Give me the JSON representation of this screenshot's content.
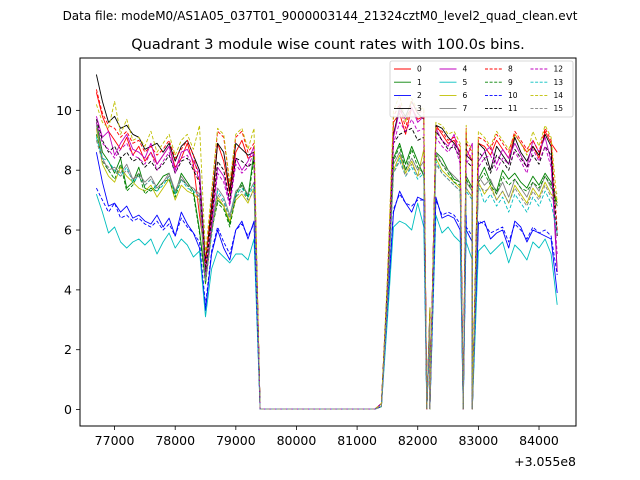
{
  "chart_data": {
    "type": "line",
    "suptitle": "Data file: modeM0/AS1A05_037T01_9000003144_21324cztM0_level2_quad_clean.evt",
    "title": "Quadrant 3 module wise count rates with 100.0s bins.",
    "xlabel": "",
    "ylabel": "",
    "x_offset_label": "+3.055e8",
    "xlim": [
      76430,
      84610
    ],
    "ylim": [
      -0.55,
      11.75
    ],
    "xticks": [
      77000,
      78000,
      79000,
      80000,
      81000,
      82000,
      83000,
      84000
    ],
    "xtick_labels": [
      "77000",
      "78000",
      "79000",
      "80000",
      "81000",
      "82000",
      "83000",
      "84000"
    ],
    "yticks": [
      0,
      2,
      4,
      6,
      8,
      10
    ],
    "ytick_labels": [
      "0",
      "2",
      "4",
      "6",
      "8",
      "10"
    ],
    "legend_position": "top-right",
    "legend_columns": 4,
    "segments": [
      {
        "start": 76700,
        "count": 27
      },
      {
        "start": 81400,
        "count": 8
      },
      {
        "start": 82200,
        "count": 7
      },
      {
        "start": 82800,
        "count": 16
      }
    ],
    "gaps": [
      {
        "from": 79400,
        "to": 81300
      }
    ],
    "series": [
      {
        "name": "0",
        "color": "#ff0000",
        "dash": "solid",
        "values": [
          10.6,
          9.8,
          9.3,
          9.0,
          8.7,
          9.1,
          8.5,
          8.8,
          8.3,
          8.6,
          8.2,
          8.5,
          8.8,
          8.1,
          8.4,
          8.9,
          8.2,
          6.5,
          5.0,
          6.5,
          8.9,
          8.3,
          7.2,
          8.6,
          9.0,
          8.4,
          8.5,
          0.2,
          4.1,
          9.6,
          9.9,
          9.2,
          10.1,
          9.7,
          9.8,
          3.2,
          9.5,
          9.2,
          8.9,
          9.0,
          8.6,
          9.3,
          8.7,
          8.3,
          8.9,
          8.8,
          8.5,
          9.0,
          8.7,
          8.4,
          9.2,
          8.9,
          8.6,
          8.8,
          8.4,
          9.3,
          8.9,
          8.6
        ]
      },
      {
        "name": "1",
        "color": "#008000",
        "dash": "solid",
        "values": [
          9.6,
          8.6,
          8.3,
          7.9,
          8.4,
          7.4,
          7.6,
          8.1,
          7.4,
          7.3,
          7.5,
          7.8,
          7.9,
          7.2,
          7.9,
          7.6,
          7.3,
          6.0,
          4.3,
          6.1,
          7.0,
          6.8,
          6.2,
          7.2,
          7.6,
          7.1,
          8.6,
          0.1,
          3.9,
          8.4,
          8.9,
          8.2,
          8.8,
          8.3,
          7.8,
          2.9,
          8.6,
          8.4,
          8.0,
          7.7,
          7.6,
          7.9,
          7.8,
          7.4,
          7.7,
          8.1,
          7.6,
          7.3,
          8.0,
          7.7,
          7.9,
          7.6,
          7.4,
          7.8,
          7.5,
          7.9,
          7.6,
          6.9
        ]
      },
      {
        "name": "2",
        "color": "#0000ff",
        "dash": "solid",
        "values": [
          8.6,
          7.6,
          6.8,
          6.9,
          6.6,
          6.8,
          6.4,
          6.5,
          6.3,
          6.2,
          6.5,
          6.1,
          6.4,
          5.8,
          6.6,
          6.2,
          5.9,
          5.4,
          3.3,
          5.2,
          6.0,
          5.4,
          5.0,
          6.0,
          6.3,
          5.7,
          6.3,
          0.1,
          3.3,
          6.6,
          7.3,
          6.9,
          6.6,
          7.1,
          7.0,
          2.8,
          7.1,
          6.4,
          6.5,
          6.4,
          6.0,
          6.4,
          6.0,
          5.6,
          6.2,
          6.3,
          5.7,
          5.9,
          6.0,
          5.4,
          6.3,
          6.1,
          5.6,
          6.0,
          5.9,
          5.8,
          5.7,
          3.9
        ]
      },
      {
        "name": "3",
        "color": "#000000",
        "dash": "solid",
        "values": [
          11.2,
          10.3,
          9.6,
          9.8,
          9.4,
          9.5,
          9.2,
          9.1,
          8.7,
          8.8,
          8.9,
          8.6,
          8.9,
          8.3,
          8.8,
          9.0,
          8.5,
          8.0,
          4.9,
          6.8,
          8.9,
          8.6,
          7.3,
          8.9,
          8.7,
          8.5,
          8.6,
          0.2,
          4.2,
          9.2,
          10.1,
          9.8,
          10.3,
          9.9,
          9.7,
          3.4,
          9.5,
          9.4,
          9.1,
          8.9,
          8.6,
          9.2,
          8.5,
          8.3,
          8.9,
          8.7,
          8.0,
          8.8,
          8.5,
          8.2,
          9.1,
          8.6,
          8.3,
          8.8,
          8.5,
          9.2,
          8.8,
          4.6
        ]
      },
      {
        "name": "4",
        "color": "#bf00bf",
        "dash": "solid",
        "values": [
          9.8,
          9.1,
          9.3,
          8.5,
          8.9,
          9.2,
          8.7,
          8.6,
          8.4,
          8.9,
          8.2,
          8.5,
          8.8,
          8.0,
          8.6,
          8.7,
          8.3,
          7.9,
          4.5,
          6.2,
          8.1,
          7.8,
          6.9,
          8.4,
          8.0,
          8.3,
          8.8,
          0.2,
          3.9,
          9.1,
          10.0,
          9.7,
          10.1,
          9.6,
          9.8,
          3.1,
          9.4,
          9.0,
          8.8,
          9.2,
          8.4,
          8.6,
          8.4,
          8.9,
          8.3,
          8.6,
          8.8,
          8.2,
          8.7,
          8.4,
          8.9,
          8.5,
          8.1,
          9.0,
          8.6,
          9.1,
          8.3,
          4.6
        ]
      },
      {
        "name": "5",
        "color": "#00bfbf",
        "dash": "solid",
        "values": [
          7.2,
          6.6,
          5.9,
          6.1,
          5.6,
          5.4,
          5.6,
          5.7,
          5.5,
          5.7,
          5.2,
          5.6,
          5.9,
          5.4,
          5.7,
          5.5,
          5.1,
          5.3,
          3.1,
          4.7,
          5.3,
          5.1,
          4.9,
          5.2,
          5.2,
          5.0,
          5.7,
          0.1,
          3.0,
          6.1,
          6.3,
          6.2,
          6.0,
          6.9,
          6.1,
          2.6,
          6.5,
          5.9,
          6.1,
          5.8,
          5.6,
          6.1,
          5.6,
          5.0,
          5.3,
          5.5,
          5.2,
          5.4,
          5.6,
          4.9,
          5.5,
          5.3,
          5.0,
          5.6,
          5.4,
          5.7,
          5.2,
          3.5
        ]
      },
      {
        "name": "6",
        "color": "#bfbf00",
        "dash": "solid",
        "values": [
          9.4,
          8.2,
          7.8,
          7.6,
          8.1,
          7.8,
          7.6,
          7.4,
          7.3,
          7.5,
          7.1,
          7.4,
          7.7,
          7.0,
          7.5,
          7.3,
          7.2,
          7.0,
          4.2,
          5.9,
          7.1,
          6.8,
          6.3,
          7.0,
          7.2,
          6.9,
          7.4,
          0.1,
          3.6,
          8.0,
          8.5,
          7.9,
          8.3,
          7.8,
          8.7,
          3.0,
          8.4,
          8.0,
          7.8,
          7.6,
          7.4,
          7.7,
          7.4,
          7.1,
          7.6,
          7.2,
          7.5,
          7.0,
          7.3,
          6.9,
          7.5,
          7.2,
          6.9,
          7.4,
          7.1,
          7.6,
          7.2,
          7.0
        ]
      },
      {
        "name": "7",
        "color": "#808080",
        "dash": "solid",
        "values": [
          9.5,
          8.4,
          8.0,
          8.1,
          7.9,
          8.2,
          7.7,
          7.9,
          7.6,
          7.8,
          7.4,
          7.6,
          7.9,
          7.3,
          7.8,
          7.5,
          7.4,
          7.2,
          4.4,
          6.0,
          7.4,
          7.1,
          6.5,
          7.3,
          7.5,
          7.2,
          7.6,
          0.1,
          3.7,
          8.2,
          8.6,
          8.0,
          8.4,
          8.0,
          8.3,
          3.0,
          8.6,
          8.2,
          8.0,
          7.8,
          7.6,
          7.9,
          7.6,
          7.3,
          7.8,
          7.5,
          7.7,
          7.2,
          7.6,
          7.1,
          7.7,
          7.4,
          7.1,
          7.6,
          7.3,
          7.8,
          7.4,
          7.2
        ]
      },
      {
        "name": "8",
        "color": "#ff0000",
        "dash": "dashed",
        "values": [
          10.7,
          9.9,
          9.5,
          9.4,
          9.1,
          9.3,
          8.9,
          9.0,
          8.6,
          8.8,
          8.5,
          8.7,
          9.0,
          8.4,
          8.7,
          9.0,
          8.5,
          7.6,
          4.8,
          7.2,
          9.3,
          9.1,
          7.5,
          9.1,
          9.3,
          8.6,
          8.9,
          0.2,
          4.3,
          9.8,
          10.2,
          9.4,
          10.3,
          9.9,
          10.0,
          3.3,
          9.4,
          9.3,
          9.0,
          9.1,
          8.8,
          9.4,
          8.9,
          8.6,
          9.1,
          9.0,
          8.7,
          9.2,
          8.9,
          8.6,
          9.3,
          9.0,
          8.7,
          9.0,
          8.6,
          9.4,
          9.0,
          6.0
        ]
      },
      {
        "name": "9",
        "color": "#008000",
        "dash": "dashed",
        "values": [
          9.2,
          8.3,
          8.0,
          7.7,
          8.2,
          7.3,
          7.5,
          7.9,
          7.2,
          7.4,
          7.3,
          7.6,
          7.7,
          7.1,
          7.7,
          7.5,
          7.2,
          5.9,
          4.2,
          6.0,
          6.9,
          6.7,
          6.1,
          7.1,
          7.5,
          7.0,
          8.4,
          0.1,
          3.8,
          8.3,
          8.8,
          8.0,
          8.7,
          8.1,
          7.9,
          2.9,
          8.5,
          8.2,
          7.9,
          7.6,
          7.5,
          7.8,
          7.7,
          7.3,
          7.6,
          7.9,
          7.5,
          7.2,
          7.8,
          7.5,
          7.7,
          7.4,
          7.3,
          7.6,
          7.4,
          7.8,
          7.5,
          6.8
        ]
      },
      {
        "name": "10",
        "color": "#0000ff",
        "dash": "dashed",
        "values": [
          7.4,
          7.0,
          6.6,
          6.9,
          6.4,
          6.5,
          6.3,
          6.4,
          6.2,
          6.1,
          6.3,
          6.0,
          6.2,
          5.8,
          6.4,
          6.1,
          5.9,
          5.6,
          3.5,
          5.3,
          6.1,
          5.6,
          5.2,
          6.0,
          6.2,
          5.8,
          6.2,
          0.1,
          3.4,
          6.7,
          7.2,
          6.9,
          6.8,
          7.0,
          7.0,
          2.7,
          7.0,
          6.5,
          6.6,
          6.5,
          6.2,
          6.5,
          6.1,
          5.8,
          6.3,
          6.2,
          5.9,
          6.0,
          6.1,
          5.6,
          6.2,
          6.0,
          5.7,
          6.1,
          5.9,
          6.0,
          5.8,
          4.5
        ]
      },
      {
        "name": "11",
        "color": "#000000",
        "dash": "dashed",
        "values": [
          9.7,
          9.0,
          8.6,
          8.8,
          8.4,
          8.6,
          8.3,
          8.4,
          8.1,
          8.3,
          8.0,
          8.2,
          8.5,
          7.9,
          8.3,
          8.4,
          8.0,
          7.6,
          4.6,
          6.4,
          8.3,
          8.0,
          7.0,
          8.4,
          8.3,
          8.1,
          8.3,
          0.2,
          4.0,
          8.9,
          9.2,
          9.3,
          9.4,
          9.0,
          9.1,
          3.2,
          9.3,
          9.0,
          8.7,
          8.8,
          8.4,
          8.9,
          8.3,
          8.1,
          8.6,
          8.4,
          7.9,
          8.5,
          8.3,
          8.0,
          8.7,
          8.4,
          8.1,
          8.5,
          8.2,
          8.8,
          8.5,
          5.8
        ]
      },
      {
        "name": "12",
        "color": "#bf00bf",
        "dash": "dashed",
        "values": [
          9.6,
          8.9,
          8.7,
          8.4,
          8.7,
          8.9,
          8.5,
          8.4,
          8.2,
          8.6,
          8.0,
          8.3,
          8.6,
          7.9,
          8.4,
          8.5,
          8.1,
          7.7,
          4.4,
          6.1,
          7.9,
          7.6,
          6.8,
          8.2,
          7.9,
          8.1,
          8.6,
          0.2,
          3.8,
          8.9,
          9.6,
          9.3,
          9.7,
          9.3,
          9.4,
          3.0,
          9.1,
          8.8,
          8.6,
          8.9,
          8.2,
          8.4,
          8.2,
          8.6,
          8.1,
          8.4,
          8.5,
          8.0,
          8.4,
          8.2,
          8.6,
          8.3,
          7.9,
          8.7,
          8.3,
          8.8,
          8.1,
          5.2
        ]
      },
      {
        "name": "13",
        "color": "#00bfbf",
        "dash": "dashed",
        "values": [
          9.1,
          8.4,
          8.3,
          8.0,
          7.8,
          8.1,
          7.6,
          7.8,
          7.5,
          7.7,
          7.3,
          7.5,
          7.8,
          7.2,
          7.7,
          7.4,
          7.3,
          7.1,
          4.3,
          5.8,
          7.3,
          7.0,
          6.4,
          7.2,
          7.4,
          7.1,
          7.5,
          0.1,
          3.5,
          7.9,
          8.4,
          7.8,
          8.1,
          7.7,
          7.9,
          2.9,
          8.3,
          7.9,
          7.7,
          7.5,
          7.3,
          7.6,
          7.3,
          7.0,
          7.5,
          6.9,
          7.2,
          6.8,
          7.1,
          6.6,
          7.2,
          6.9,
          6.6,
          7.1,
          6.8,
          7.3,
          6.9,
          5.9
        ]
      },
      {
        "name": "14",
        "color": "#bfbf00",
        "dash": "dashed",
        "values": [
          10.2,
          9.6,
          9.4,
          10.3,
          9.2,
          9.7,
          9.0,
          9.1,
          8.8,
          9.3,
          8.6,
          8.9,
          9.2,
          8.5,
          9.0,
          9.2,
          8.7,
          9.5,
          5.2,
          7.3,
          9.4,
          9.2,
          7.6,
          9.2,
          9.4,
          8.7,
          9.4,
          0.2,
          4.4,
          10.0,
          10.5,
          9.6,
          10.4,
          10.0,
          10.1,
          3.4,
          9.6,
          9.5,
          9.2,
          9.3,
          8.9,
          9.5,
          9.0,
          8.7,
          9.3,
          9.1,
          8.8,
          9.3,
          9.0,
          8.7,
          9.2,
          8.9,
          8.5,
          9.3,
          8.8,
          9.5,
          9.1,
          6.9
        ]
      },
      {
        "name": "15",
        "color": "#808080",
        "dash": "dashed",
        "values": [
          9.0,
          8.3,
          8.1,
          8.0,
          7.8,
          8.0,
          7.7,
          7.8,
          7.5,
          7.7,
          7.4,
          7.6,
          7.8,
          7.3,
          7.7,
          7.5,
          7.4,
          7.1,
          4.3,
          5.9,
          7.2,
          6.9,
          6.4,
          7.1,
          7.3,
          7.0,
          7.3,
          0.1,
          3.6,
          7.9,
          8.3,
          7.8,
          8.2,
          7.8,
          8.0,
          2.9,
          8.2,
          7.9,
          7.7,
          7.5,
          7.3,
          7.6,
          7.4,
          7.1,
          7.5,
          7.3,
          7.4,
          7.0,
          7.3,
          6.9,
          7.4,
          7.1,
          6.8,
          7.3,
          7.0,
          7.5,
          7.1,
          6.8
        ]
      }
    ]
  }
}
